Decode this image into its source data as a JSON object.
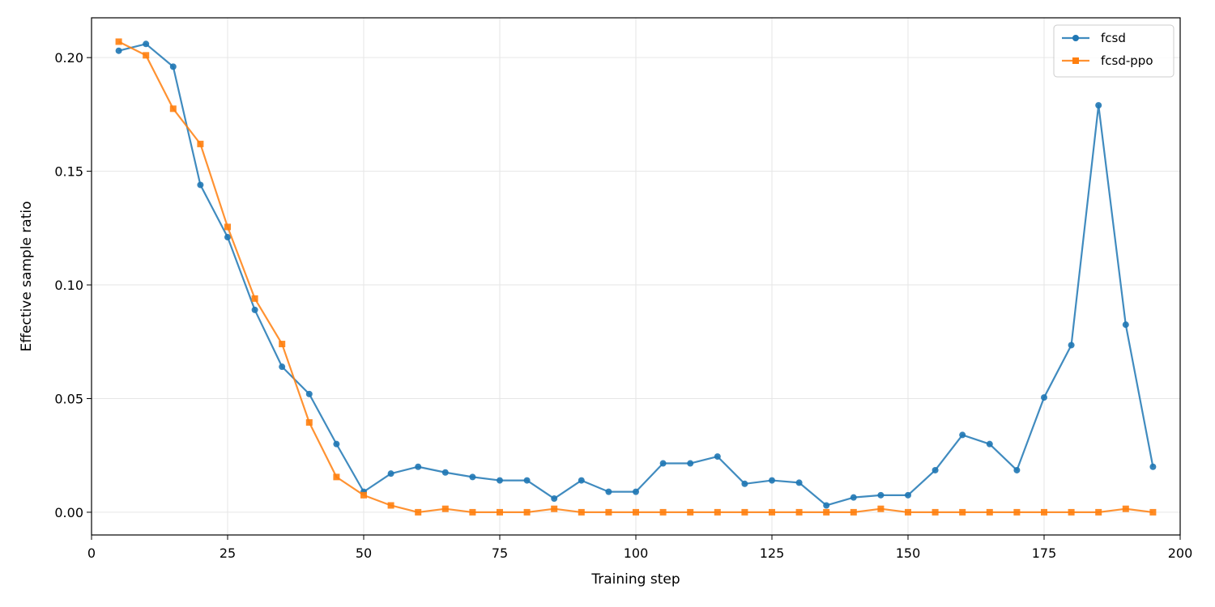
{
  "chart_data": {
    "type": "line",
    "xlabel": "Training step",
    "ylabel": "Effective sample ratio",
    "xlim": [
      0,
      200
    ],
    "ylim": [
      -0.01,
      0.2175
    ],
    "x_ticks": [
      0,
      25,
      50,
      75,
      100,
      125,
      150,
      175,
      200
    ],
    "y_ticks": [
      0.0,
      0.05,
      0.1,
      0.15,
      0.2
    ],
    "y_tick_labels": [
      "0.00",
      "0.05",
      "0.10",
      "0.15",
      "0.20"
    ],
    "grid": true,
    "legend_position": "top-right",
    "x": [
      5,
      10,
      15,
      20,
      25,
      30,
      35,
      40,
      45,
      50,
      55,
      60,
      65,
      70,
      75,
      80,
      85,
      90,
      95,
      100,
      105,
      110,
      115,
      120,
      125,
      130,
      135,
      140,
      145,
      150,
      155,
      160,
      165,
      170,
      175,
      180,
      185,
      190,
      195
    ],
    "series": [
      {
        "name": "fcsd",
        "color": "#1f77b4",
        "marker": "circle",
        "values": [
          0.203,
          0.206,
          0.196,
          0.144,
          0.121,
          0.089,
          0.064,
          0.052,
          0.03,
          0.009,
          0.017,
          0.02,
          0.0175,
          0.0155,
          0.014,
          0.014,
          0.006,
          0.014,
          0.009,
          0.009,
          0.0215,
          0.0215,
          0.0245,
          0.0125,
          0.014,
          0.013,
          0.003,
          0.0065,
          0.0075,
          0.0075,
          0.0185,
          0.034,
          0.03,
          0.0185,
          0.0505,
          0.0735,
          0.179,
          0.0825,
          0.02
        ]
      },
      {
        "name": "fcsd-ppo",
        "color": "#ff7f0e",
        "marker": "square",
        "values": [
          0.207,
          0.201,
          0.1775,
          0.162,
          0.1255,
          0.094,
          0.074,
          0.0395,
          0.0155,
          0.0075,
          0.003,
          0.0,
          0.0015,
          0.0,
          0.0,
          0.0,
          0.0015,
          0.0,
          0.0,
          0.0,
          0.0,
          0.0,
          0.0,
          0.0,
          0.0,
          0.0,
          0.0,
          0.0,
          0.0015,
          0.0,
          0.0,
          0.0,
          0.0,
          0.0,
          0.0,
          0.0,
          0.0,
          0.0015,
          0.0
        ]
      }
    ]
  }
}
